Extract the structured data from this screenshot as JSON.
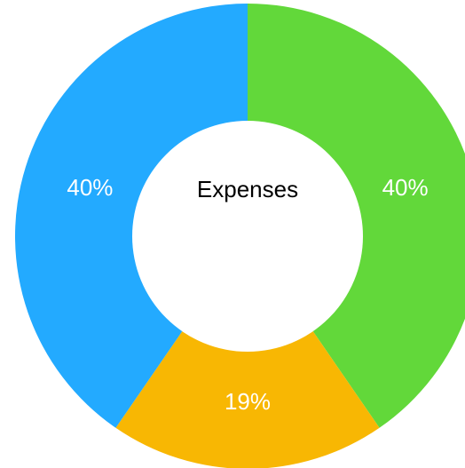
{
  "chart_data": {
    "type": "pie",
    "center_label": "Expenses",
    "slices": [
      {
        "value": 40,
        "label": "40%",
        "color": "#62d83a"
      },
      {
        "value": 19,
        "label": "19%",
        "color": "#f8b703"
      },
      {
        "value": 40,
        "label": "40%",
        "color": "#23aaff"
      }
    ]
  }
}
